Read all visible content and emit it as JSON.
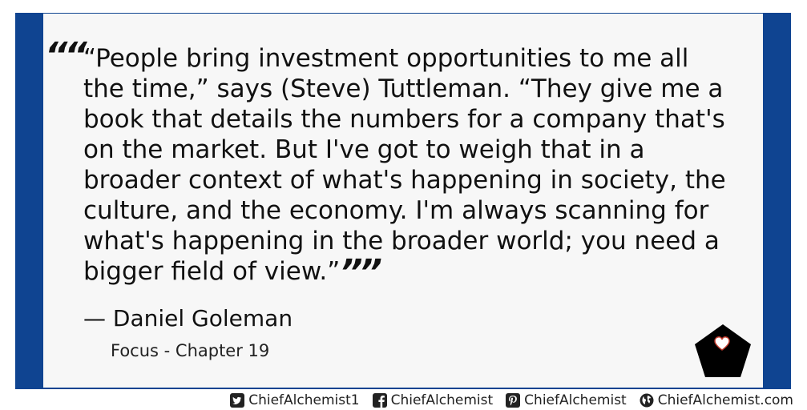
{
  "quote": {
    "open_mark": "““",
    "text": "“People bring investment opportunities to me all the time,” says (Steve) Tuttleman. “They give me a book that details the numbers for a company that's on the market. But I've got to weigh that in a broader context of what's happening in society, the culture, and the economy. I'm always scanning for what's happening in the broader world; you need a bigger field of view.”",
    "close_mark": "””"
  },
  "attribution": {
    "author": "— Daniel Goleman",
    "book": "Focus - Chapter 19"
  },
  "footer": {
    "twitter": "ChiefAlchemist1",
    "facebook": "ChiefAlchemist",
    "pinterest": "ChiefAlchemist",
    "website": "ChiefAlchemist.com"
  },
  "colors": {
    "accent": "#0f4491",
    "card_background": "#f7f7f7",
    "logo": "#000000",
    "heart": "#ffffff"
  },
  "icons": {
    "logo": "pentagon-heart-icon",
    "twitter": "twitter-icon",
    "facebook": "facebook-icon",
    "pinterest": "pinterest-icon",
    "website": "globe-icon"
  }
}
